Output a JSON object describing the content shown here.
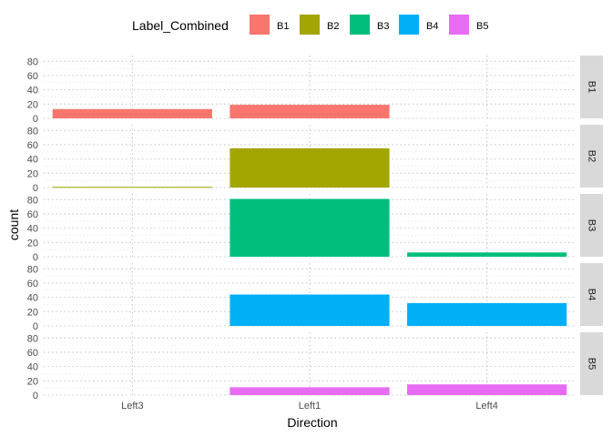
{
  "chart_data": {
    "type": "bar",
    "layout": "faceted (one row panel per Label_Combined group)",
    "xlabel": "Direction",
    "ylabel": "count",
    "categories": [
      "Left3",
      "Left1",
      "Left4"
    ],
    "ylim": [
      0,
      88
    ],
    "yticks": [
      0,
      20,
      40,
      60,
      80
    ],
    "y_minor_ticks": [
      10,
      30,
      50,
      70
    ],
    "grid": "dotted horizontal",
    "legend": {
      "title": "Label_Combined",
      "placement": "top",
      "entries": [
        "B1",
        "B2",
        "B3",
        "B4",
        "B5"
      ]
    },
    "series": [
      {
        "name": "B1",
        "color": "#F8766D",
        "values": [
          13,
          19,
          0
        ]
      },
      {
        "name": "B2",
        "color": "#A3A500",
        "values": [
          1,
          55,
          0
        ]
      },
      {
        "name": "B3",
        "color": "#00BF7D",
        "values": [
          0,
          81,
          6
        ]
      },
      {
        "name": "B4",
        "color": "#00B0F6",
        "values": [
          0,
          44,
          32
        ]
      },
      {
        "name": "B5",
        "color": "#E76BF3",
        "values": [
          0,
          11,
          15
        ]
      }
    ]
  }
}
